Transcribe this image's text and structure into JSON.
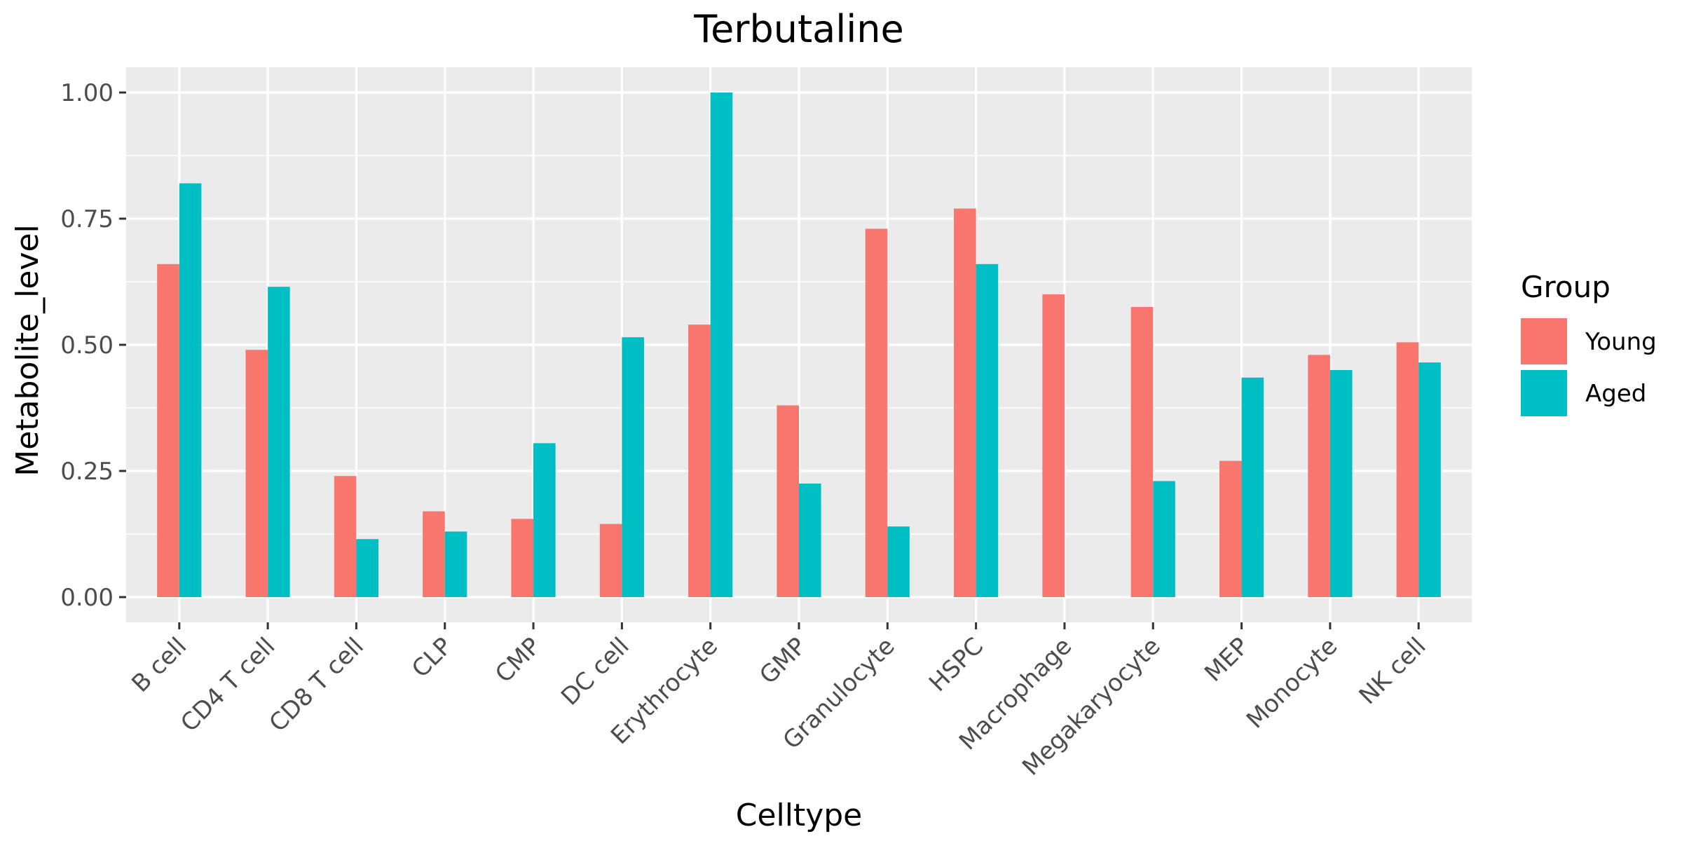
{
  "chart_data": {
    "type": "bar",
    "title": "Terbutaline",
    "xlabel": "Celltype",
    "ylabel": "Metabolite_level",
    "categories": [
      "B cell",
      "CD4 T cell",
      "CD8 T cell",
      "CLP",
      "CMP",
      "DC cell",
      "Erythrocyte",
      "GMP",
      "Granulocyte",
      "HSPC",
      "Macrophage",
      "Megakaryocyte",
      "MEP",
      "Monocyte",
      "NK cell"
    ],
    "series": [
      {
        "name": "Young",
        "color": "#F8766D",
        "values": [
          0.66,
          0.49,
          0.24,
          0.17,
          0.155,
          0.145,
          0.54,
          0.38,
          0.73,
          0.77,
          0.6,
          0.575,
          0.27,
          0.48,
          0.505
        ]
      },
      {
        "name": "Aged",
        "color": "#00BFC4",
        "values": [
          0.82,
          0.615,
          0.115,
          0.13,
          0.305,
          0.515,
          1.0,
          0.225,
          0.14,
          0.66,
          0.0,
          0.23,
          0.435,
          0.45,
          0.465
        ]
      }
    ],
    "ylim": [
      -0.05,
      1.05
    ],
    "yticks": [
      0.0,
      0.25,
      0.5,
      0.75,
      1.0
    ],
    "ytick_labels": [
      "0.00",
      "0.25",
      "0.50",
      "0.75",
      "1.00"
    ],
    "grid": true,
    "legend": {
      "title": "Group",
      "position": "right"
    },
    "panel_color": "#EBEBEB"
  }
}
